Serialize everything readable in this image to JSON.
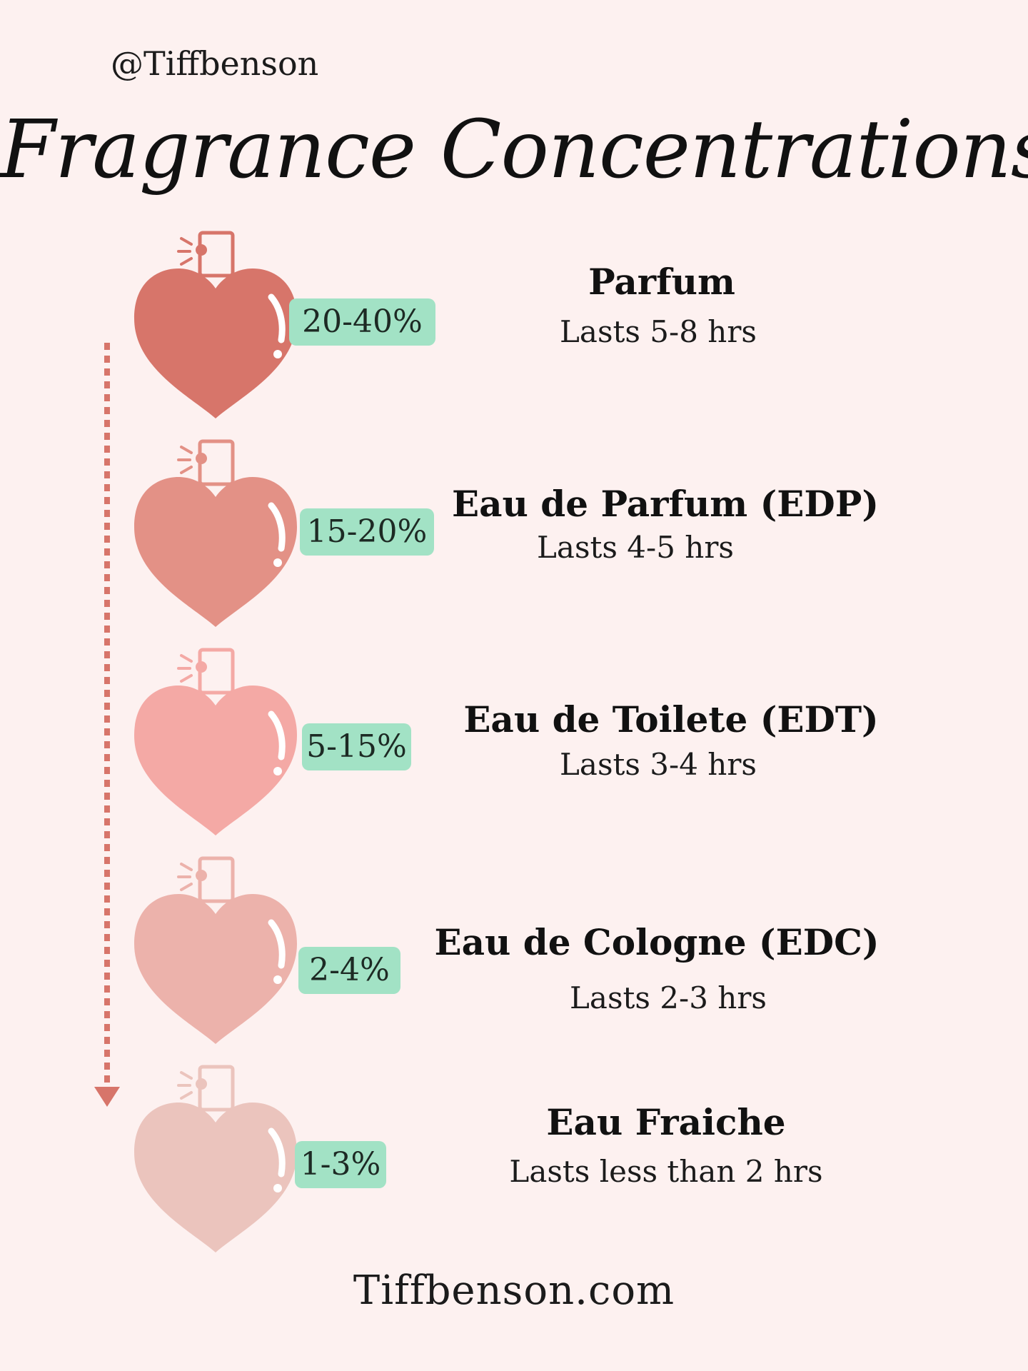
{
  "header": {
    "handle": "@Tiffbenson",
    "title": "Fragrance Concentrations"
  },
  "items": [
    {
      "name": "Parfum",
      "percent": "20-40%",
      "lasts": "Lasts 5-8 hrs",
      "color": "#d7756a"
    },
    {
      "name": "Eau de Parfum (EDP)",
      "percent": "15-20%",
      "lasts": "Lasts 4-5 hrs",
      "color": "#e39186"
    },
    {
      "name": "Eau de Toilete (EDT)",
      "percent": "5-15%",
      "lasts": "Lasts 3-4 hrs",
      "color": "#f4a9a5"
    },
    {
      "name": "Eau de Cologne (EDC)",
      "percent": "2-4%",
      "lasts": "Lasts 2-3 hrs",
      "color": "#ecb2ab"
    },
    {
      "name": "Eau Fraiche",
      "percent": "1-3%",
      "lasts": "Lasts less than 2 hrs",
      "color": "#ebc4bd"
    }
  ],
  "colors": {
    "background": "#fdf1f0",
    "pill": "#a2e2c5",
    "arrow": "#d7756a"
  },
  "icons": {
    "bottle": "heart-perfume-bottle-icon",
    "arrow": "dotted-down-arrow-icon"
  },
  "footer": {
    "website": "Tiffbenson.com"
  }
}
